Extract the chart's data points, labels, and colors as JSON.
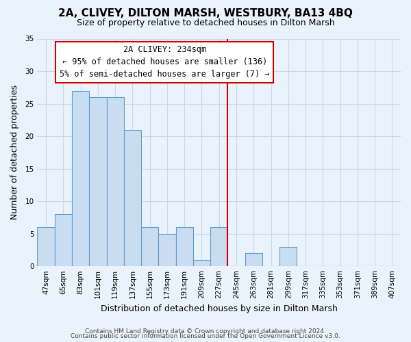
{
  "title": "2A, CLIVEY, DILTON MARSH, WESTBURY, BA13 4BQ",
  "subtitle": "Size of property relative to detached houses in Dilton Marsh",
  "xlabel": "Distribution of detached houses by size in Dilton Marsh",
  "ylabel": "Number of detached properties",
  "footer_line1": "Contains HM Land Registry data © Crown copyright and database right 2024.",
  "footer_line2": "Contains public sector information licensed under the Open Government Licence v3.0.",
  "categories": [
    "47sqm",
    "65sqm",
    "83sqm",
    "101sqm",
    "119sqm",
    "137sqm",
    "155sqm",
    "173sqm",
    "191sqm",
    "209sqm",
    "227sqm",
    "245sqm",
    "263sqm",
    "281sqm",
    "299sqm",
    "317sqm",
    "335sqm",
    "353sqm",
    "371sqm",
    "389sqm",
    "407sqm"
  ],
  "values": [
    6,
    8,
    27,
    26,
    26,
    21,
    6,
    5,
    6,
    1,
    6,
    0,
    2,
    0,
    3,
    0,
    0,
    0,
    0,
    0,
    0
  ],
  "bar_color": "#c9ddf0",
  "bar_edge_color": "#5b9bd5",
  "ylim": [
    0,
    35
  ],
  "yticks": [
    0,
    5,
    10,
    15,
    20,
    25,
    30,
    35
  ],
  "property_label": "2A CLIVEY: 234sqm",
  "vline_index": 11,
  "annotation_line1": "← 95% of detached houses are smaller (136)",
  "annotation_line2": "5% of semi-detached houses are larger (7) →",
  "vline_color": "#cc0000",
  "annotation_border_color": "#cc0000",
  "grid_color": "#c8d8e8",
  "background_color": "#eaf3fb",
  "title_fontsize": 11,
  "subtitle_fontsize": 9,
  "xlabel_fontsize": 9,
  "ylabel_fontsize": 9,
  "tick_fontsize": 7.5,
  "annotation_fontsize": 8.5,
  "footer_fontsize": 6.5
}
